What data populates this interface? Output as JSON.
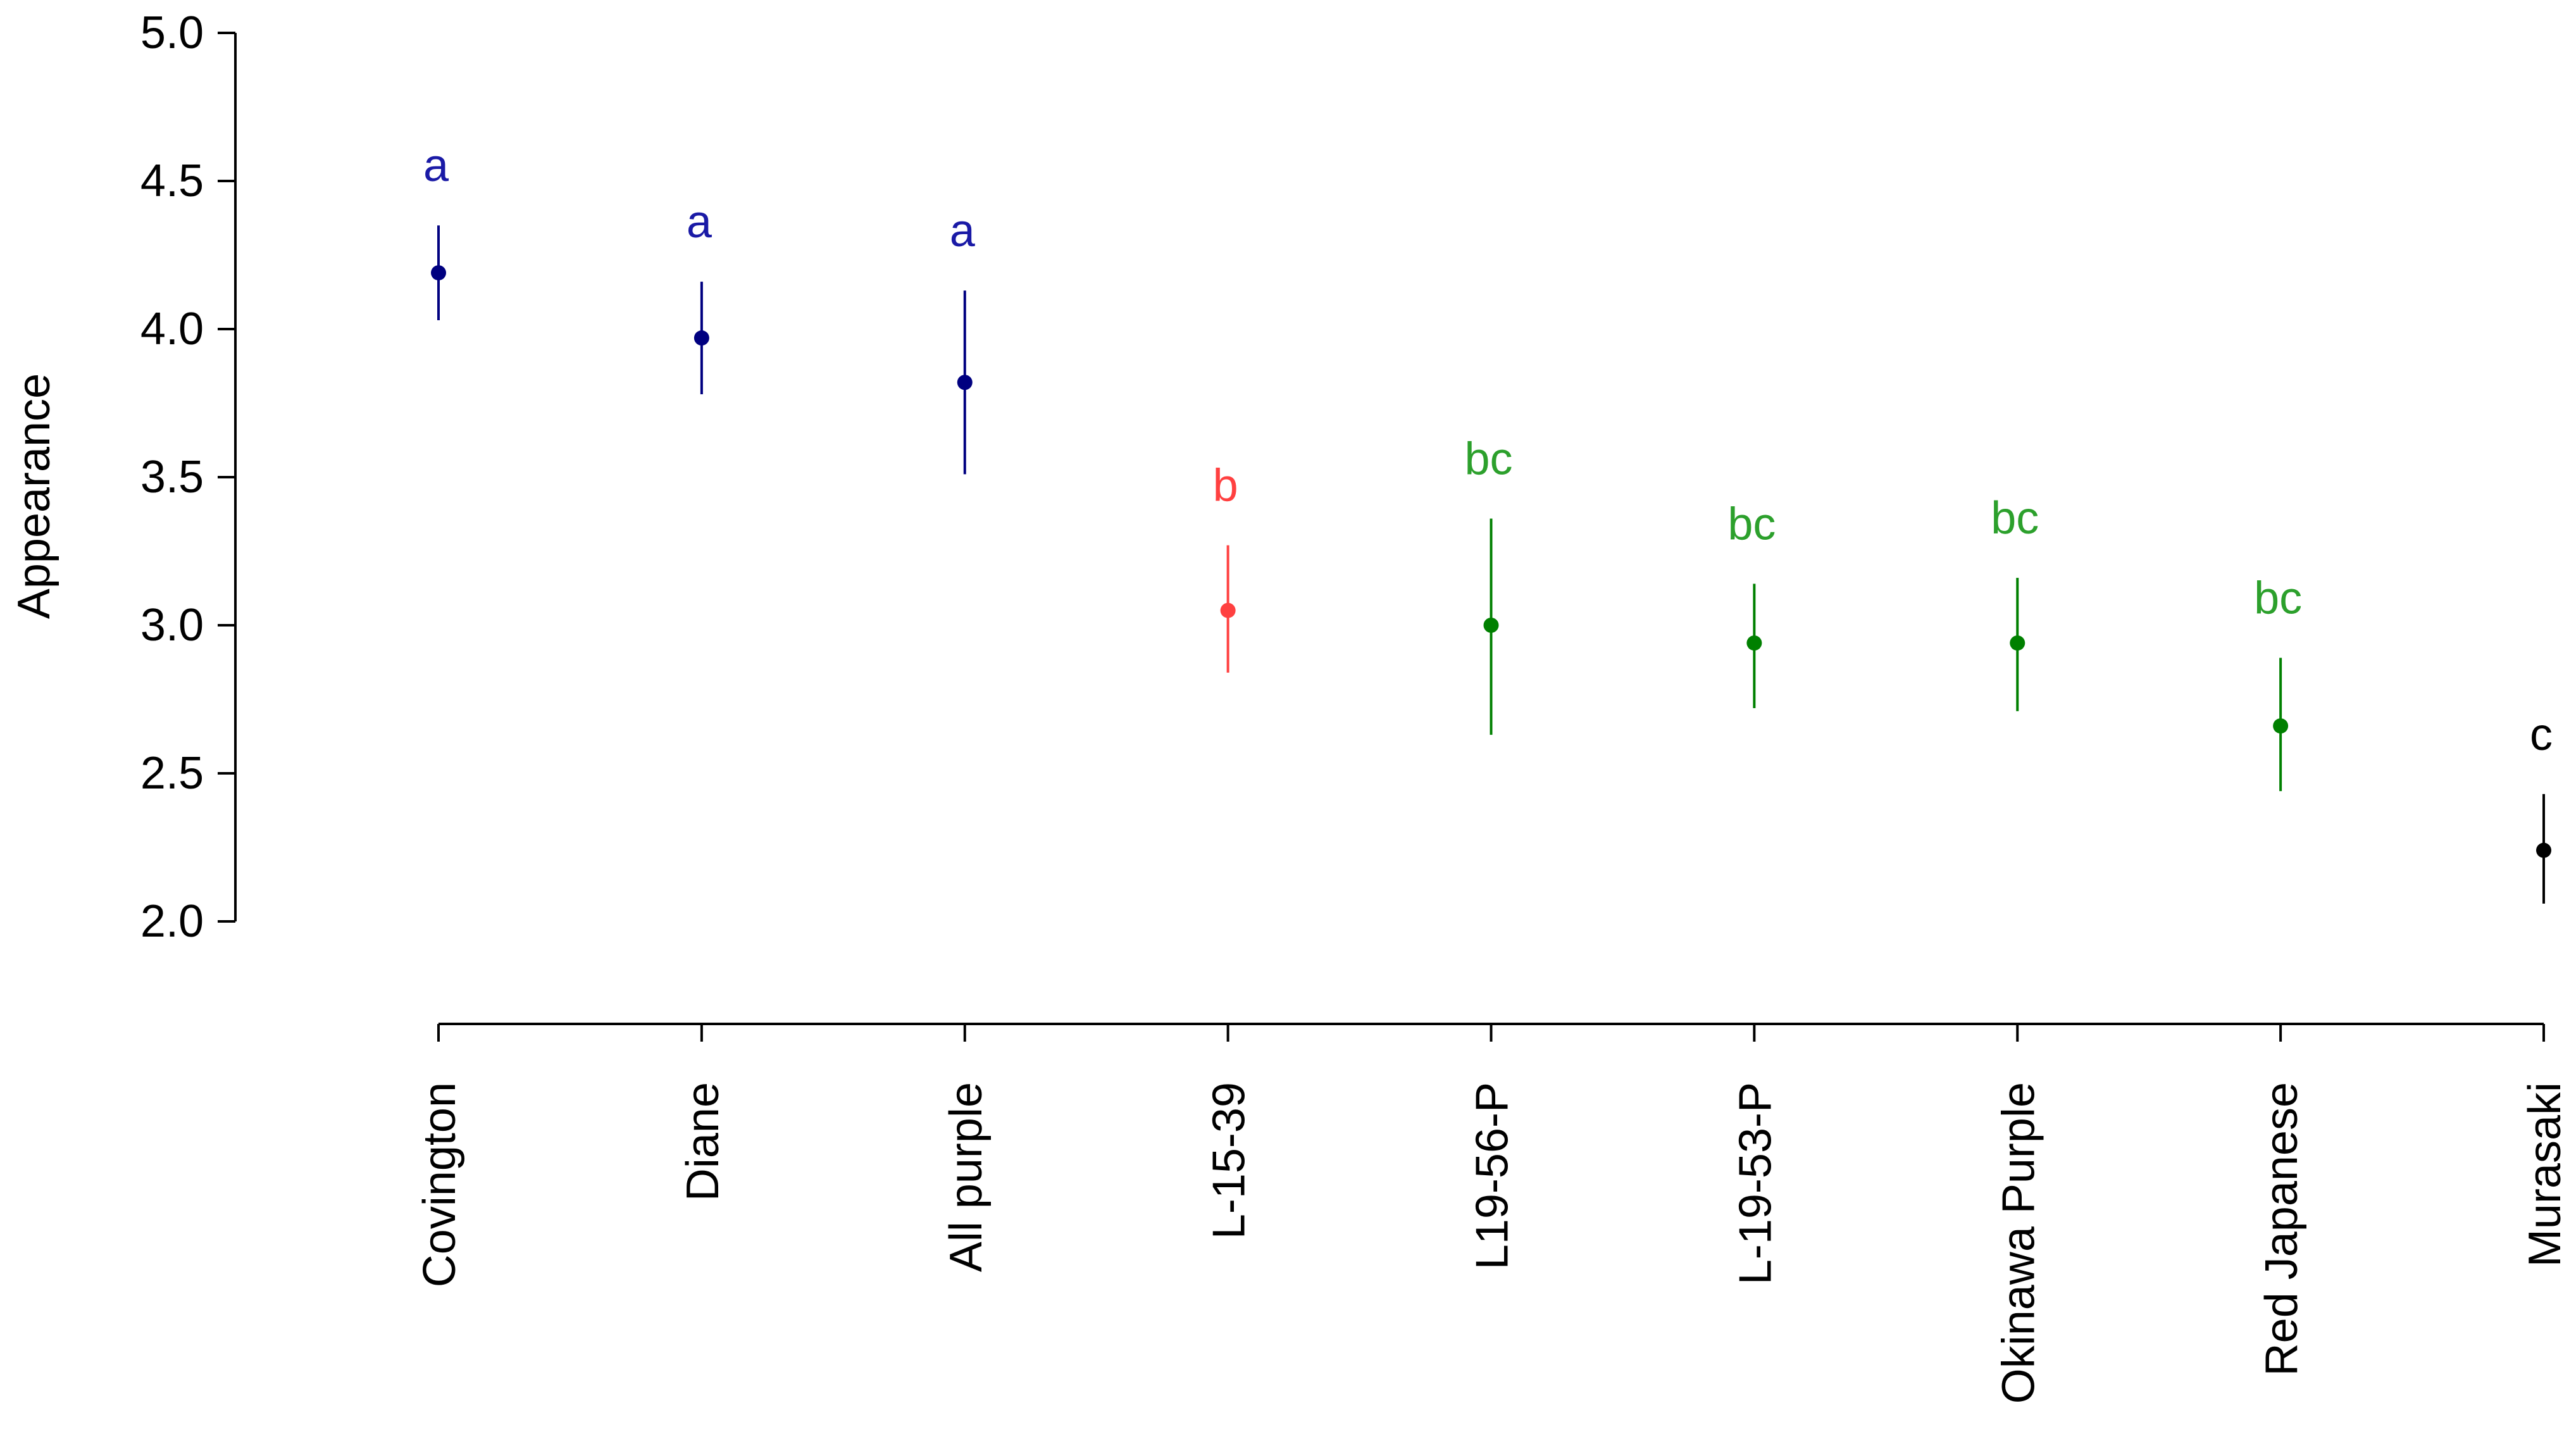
{
  "chart_data": {
    "type": "scatter",
    "ylabel": "Appearance",
    "xlabel": "",
    "title": "",
    "ylim": [
      2.0,
      5.0
    ],
    "yticks": [
      2.0,
      2.5,
      3.0,
      3.5,
      4.0,
      4.5,
      5.0
    ],
    "ytick_labels": [
      "2.0",
      "2.5",
      "3.0",
      "3.5",
      "4.0",
      "4.5",
      "5.0"
    ],
    "grid": false,
    "categories": [
      "Covington",
      "Diane",
      "All purple",
      "L-15-39",
      "L19-56-P",
      "L-19-53-P",
      "Okinawa Purple",
      "Red Japanese",
      "Murasaki"
    ],
    "points": [
      {
        "category": "Covington",
        "mean": 4.19,
        "lower": 4.03,
        "upper": 4.35,
        "letter": "a",
        "color": "#000080",
        "letter_color": "#1a1aa6"
      },
      {
        "category": "Diane",
        "mean": 3.97,
        "lower": 3.78,
        "upper": 4.16,
        "letter": "a",
        "color": "#000080",
        "letter_color": "#1a1aa6"
      },
      {
        "category": "All purple",
        "mean": 3.82,
        "lower": 3.51,
        "upper": 4.13,
        "letter": "a",
        "color": "#000080",
        "letter_color": "#1a1aa6"
      },
      {
        "category": "L-15-39",
        "mean": 3.05,
        "lower": 2.84,
        "upper": 3.27,
        "letter": "b",
        "color": "#ff4040",
        "letter_color": "#ff4040"
      },
      {
        "category": "L19-56-P",
        "mean": 3.0,
        "lower": 2.63,
        "upper": 3.36,
        "letter": "bc",
        "color": "#008000",
        "letter_color": "#2ca02c"
      },
      {
        "category": "L-19-53-P",
        "mean": 2.94,
        "lower": 2.72,
        "upper": 3.14,
        "letter": "bc",
        "color": "#008000",
        "letter_color": "#2ca02c"
      },
      {
        "category": "Okinawa Purple",
        "mean": 2.94,
        "lower": 2.71,
        "upper": 3.16,
        "letter": "bc",
        "color": "#008000",
        "letter_color": "#2ca02c"
      },
      {
        "category": "Red Japanese",
        "mean": 2.66,
        "lower": 2.44,
        "upper": 2.89,
        "letter": "bc",
        "color": "#008000",
        "letter_color": "#2ca02c"
      },
      {
        "category": "Murasaki",
        "mean": 2.24,
        "lower": 2.06,
        "upper": 2.43,
        "letter": "c",
        "color": "#000000",
        "letter_color": "#000000"
      }
    ]
  }
}
